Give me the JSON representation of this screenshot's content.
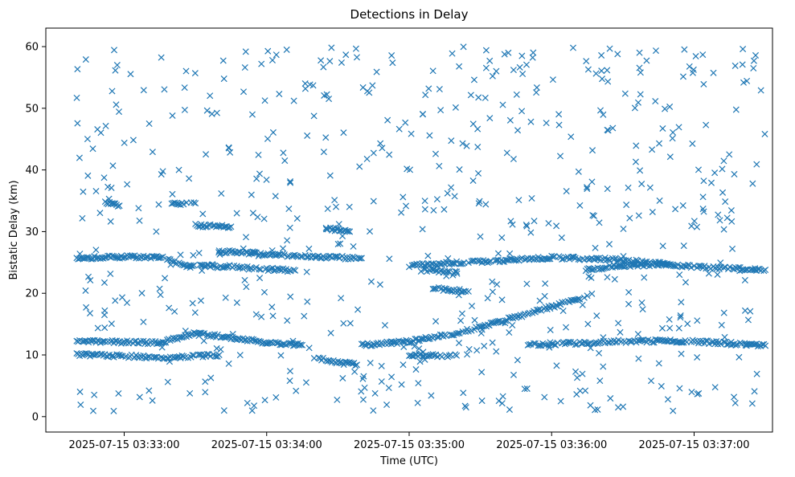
{
  "chart_data": {
    "type": "scatter",
    "title": "Detections in Delay",
    "xlabel": "Time (UTC)",
    "ylabel": "Bistatic Delay (km)",
    "x_axis": "time",
    "x_range": [
      "2025-07-15 03:32:27",
      "2025-07-15 03:37:33"
    ],
    "ylim": [
      -2.5,
      63
    ],
    "x_ticks": [
      "2025-07-15 03:33:00",
      "2025-07-15 03:34:00",
      "2025-07-15 03:35:00",
      "2025-07-15 03:36:00",
      "2025-07-15 03:37:00"
    ],
    "y_ticks": [
      0,
      10,
      20,
      30,
      40,
      50,
      60
    ],
    "marker": "x",
    "color": "#1f77b4",
    "grid": false,
    "legend": "none",
    "data_start": "2025-07-15 03:32:40",
    "data_end": "2025-07-15 03:37:30",
    "tracks": [
      {
        "points": [
          [
            "03:32:40",
            25.7
          ],
          [
            "03:33:00",
            25.9
          ],
          [
            "03:33:15",
            25.9
          ],
          [
            "03:33:25",
            24.5
          ],
          [
            "03:33:45",
            24.3
          ],
          [
            "03:34:00",
            23.9
          ],
          [
            "03:34:12",
            23.7
          ]
        ]
      },
      {
        "points": [
          [
            "03:33:40",
            26.8
          ],
          [
            "03:34:20",
            25.9
          ],
          [
            "03:34:40",
            25.7
          ]
        ]
      },
      {
        "points": [
          [
            "03:35:00",
            24.5
          ],
          [
            "03:35:40",
            25.3
          ],
          [
            "03:36:00",
            25.8
          ],
          [
            "03:36:30",
            25.4
          ],
          [
            "03:37:00",
            24.3
          ],
          [
            "03:37:30",
            23.8
          ]
        ]
      },
      {
        "points": [
          [
            "03:35:05",
            23.8
          ],
          [
            "03:35:20",
            23.5
          ]
        ]
      },
      {
        "points": [
          [
            "03:35:10",
            20.8
          ],
          [
            "03:35:25",
            20.3
          ]
        ]
      },
      {
        "points": [
          [
            "03:32:40",
            12.2
          ],
          [
            "03:33:00",
            12.1
          ],
          [
            "03:33:15",
            12.0
          ],
          [
            "03:33:30",
            13.5
          ],
          [
            "03:33:45",
            12.8
          ],
          [
            "03:34:00",
            12.0
          ],
          [
            "03:34:15",
            11.6
          ]
        ]
      },
      {
        "points": [
          [
            "03:32:40",
            10.1
          ],
          [
            "03:33:00",
            9.8
          ],
          [
            "03:33:20",
            9.6
          ],
          [
            "03:33:40",
            10.0
          ]
        ]
      },
      {
        "points": [
          [
            "03:34:20",
            9.5
          ],
          [
            "03:34:30",
            8.8
          ],
          [
            "03:34:38",
            8.4
          ]
        ]
      },
      {
        "points": [
          [
            "03:34:40",
            11.6
          ],
          [
            "03:35:00",
            12.2
          ],
          [
            "03:35:20",
            13.5
          ],
          [
            "03:35:40",
            15.6
          ],
          [
            "03:36:00",
            17.8
          ],
          [
            "03:36:15",
            19.6
          ]
        ]
      },
      {
        "points": [
          [
            "03:35:00",
            10.0
          ],
          [
            "03:35:20",
            9.9
          ]
        ]
      },
      {
        "points": [
          [
            "03:35:50",
            11.7
          ],
          [
            "03:36:10",
            11.9
          ],
          [
            "03:36:30",
            12.2
          ],
          [
            "03:36:50",
            12.3
          ],
          [
            "03:37:10",
            12.0
          ],
          [
            "03:37:30",
            11.5
          ]
        ]
      },
      {
        "points": [
          [
            "03:36:15",
            23.8
          ],
          [
            "03:36:30",
            24.5
          ],
          [
            "03:36:50",
            24.7
          ]
        ]
      },
      {
        "points": [
          [
            "03:33:20",
            34.5
          ],
          [
            "03:33:30",
            34.6
          ]
        ]
      },
      {
        "points": [
          [
            "03:32:52",
            34.8
          ],
          [
            "03:32:58",
            34.2
          ]
        ]
      },
      {
        "points": [
          [
            "03:33:30",
            31.0
          ],
          [
            "03:33:45",
            30.8
          ]
        ]
      },
      {
        "points": [
          [
            "03:34:25",
            30.5
          ],
          [
            "03:34:35",
            30.0
          ]
        ]
      }
    ],
    "noise": {
      "description": "scattered false detections",
      "count": 620,
      "x_range": [
        "03:32:40",
        "03:37:30"
      ],
      "y_range": [
        0.5,
        60
      ]
    }
  }
}
